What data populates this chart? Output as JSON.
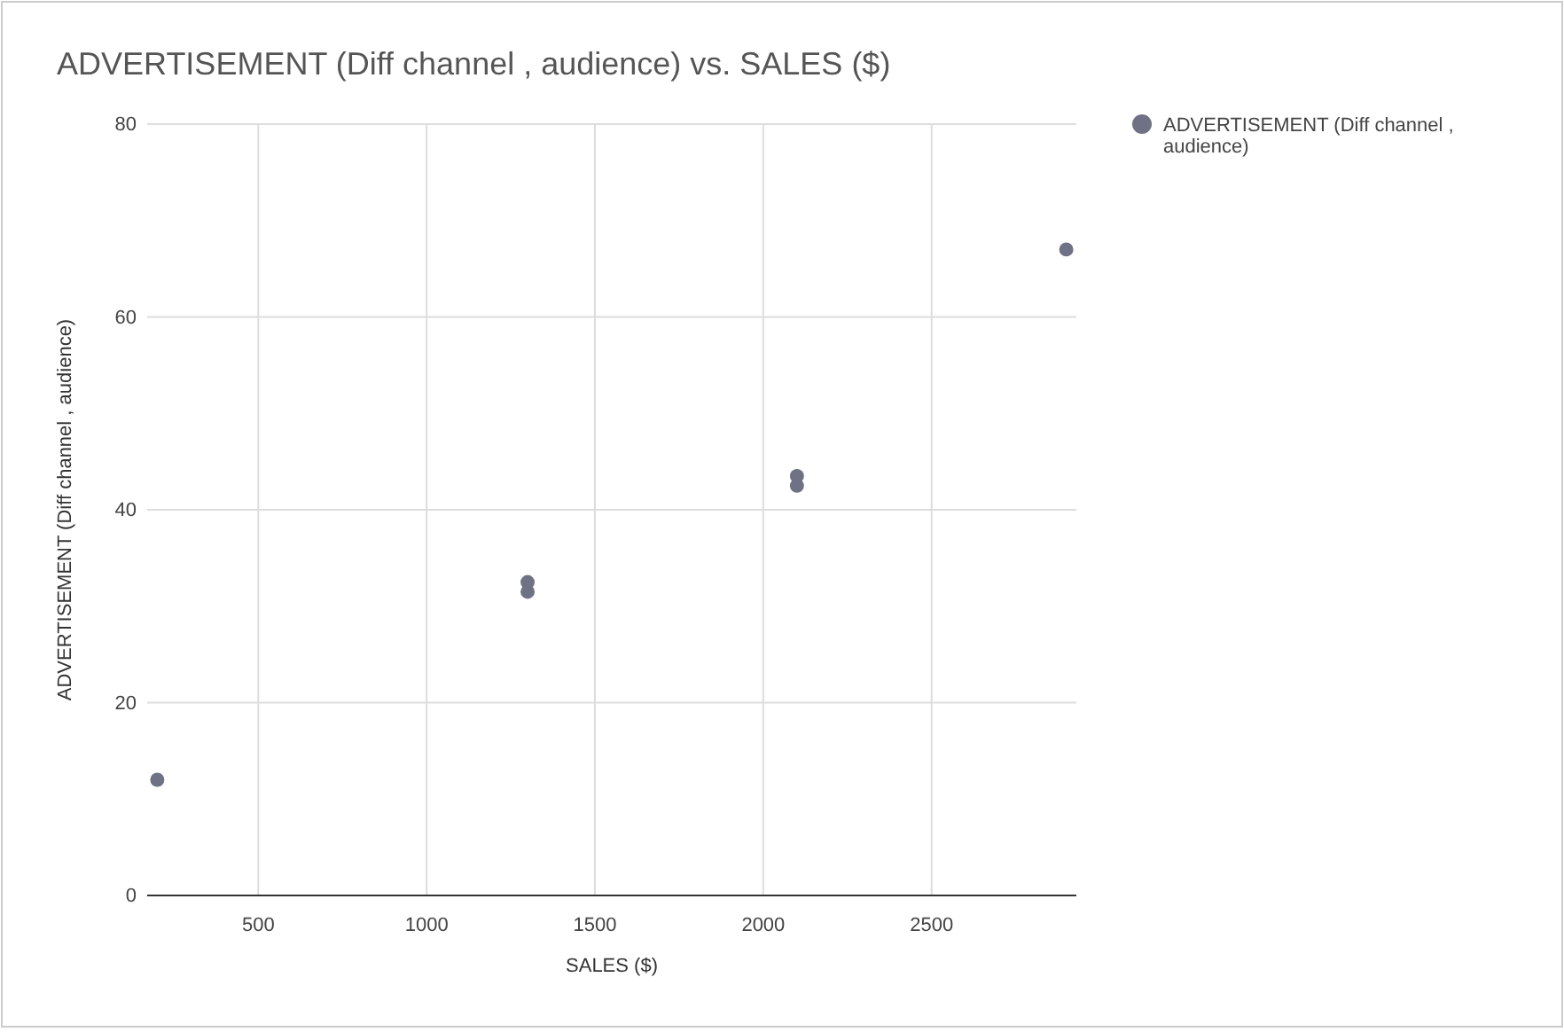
{
  "chart_data": {
    "type": "scatter",
    "title": "ADVERTISEMENT (Diff channel , audience)  vs. SALES ($)",
    "xlabel": "SALES ($)",
    "ylabel": "ADVERTISEMENT (Diff channel , audience)",
    "x": [
      200,
      1300,
      1300,
      2100,
      2100,
      2900
    ],
    "series": [
      {
        "name": "ADVERTISEMENT (Diff channel , audience)",
        "color": "#6f7284",
        "values": [
          12,
          32.5,
          31.5,
          43.5,
          42.5,
          67
        ]
      }
    ],
    "xlim": [
      170,
      2930
    ],
    "xticks": [
      500,
      1000,
      1500,
      2000,
      2500
    ],
    "ylim": [
      0,
      80
    ],
    "yticks": [
      0,
      20,
      40,
      60,
      80
    ],
    "grid": true,
    "legend": "top right",
    "marker": "circle"
  }
}
